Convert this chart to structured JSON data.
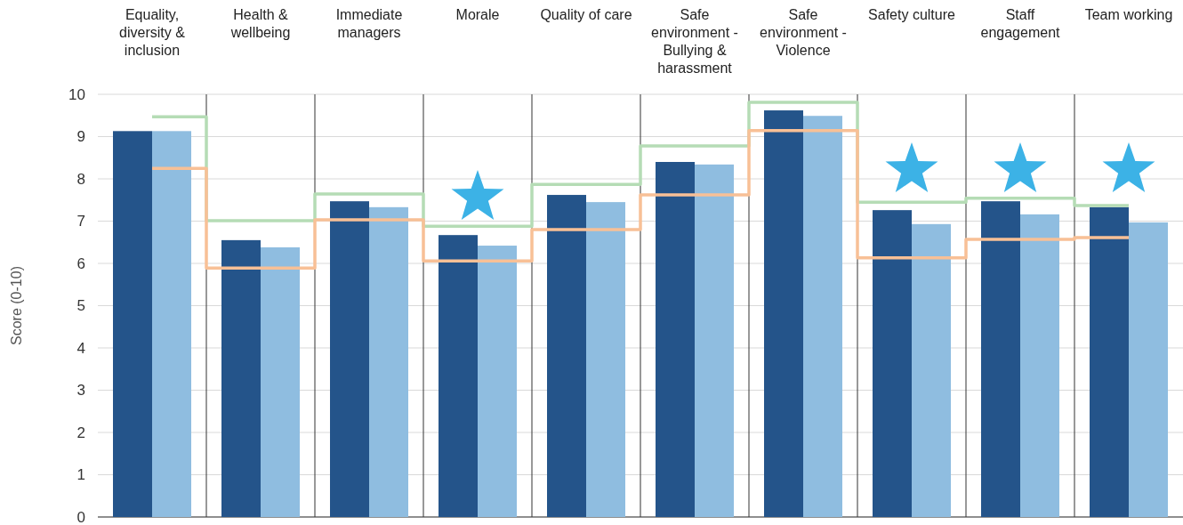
{
  "chart_data": {
    "type": "bar",
    "ylabel": "Score (0-10)",
    "categories": [
      "Equality, diversity & inclusion",
      "Health & wellbeing",
      "Immediate managers",
      "Morale",
      "Quality of care",
      "Safe environment - Bullying & harassment",
      "Safe environment - Violence",
      "Safety culture",
      "Staff engagement",
      "Team working"
    ],
    "series": [
      {
        "color": "#24548a",
        "values": [
          9.13,
          6.55,
          7.47,
          6.67,
          7.62,
          8.4,
          9.62,
          7.26,
          7.47,
          7.33
        ]
      },
      {
        "color": "#8fbde0",
        "values": [
          9.13,
          6.38,
          7.33,
          6.42,
          7.45,
          8.34,
          9.49,
          6.93,
          7.16,
          6.97
        ]
      },
      {
        "type": "step",
        "color": "#b5dcb5",
        "values": [
          9.47,
          7.01,
          7.64,
          6.88,
          7.87,
          8.78,
          9.81,
          7.45,
          7.54,
          7.37
        ]
      },
      {
        "type": "step",
        "color": "#f8c096",
        "values": [
          8.25,
          5.89,
          7.03,
          6.06,
          6.8,
          7.62,
          9.14,
          6.13,
          6.57,
          6.61
        ]
      }
    ],
    "ylim": [
      0,
      10
    ],
    "yticks": [
      0,
      1,
      2,
      3,
      4,
      5,
      6,
      7,
      8,
      9,
      10
    ],
    "grid": "y"
  }
}
